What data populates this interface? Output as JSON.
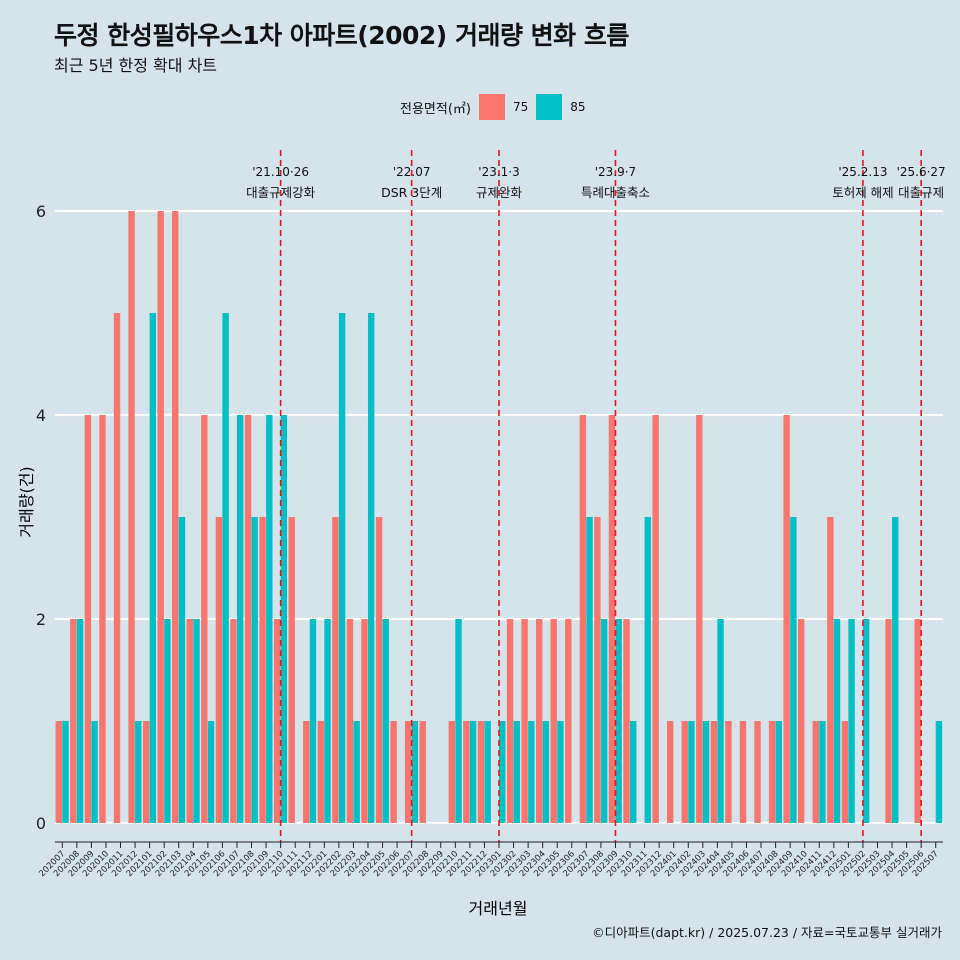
{
  "header": {
    "title": "두정 한성필하우스1차 아파트(2002) 거래량 변화 흐름",
    "subtitle": "최근 5년 한정 확대 차트"
  },
  "legend": {
    "title": "전용면적(㎡)",
    "items": [
      {
        "label": "75",
        "color": "#f8766d"
      },
      {
        "label": "85",
        "color": "#00bfc4"
      }
    ]
  },
  "caption": "©디아파트(dapt.kr) / 2025.07.23 / 자료=국토교통부 실거래가",
  "colors": {
    "background": "#d5e3ea",
    "grid": "#ffffff",
    "vline": "#e8141c"
  },
  "chart_data": {
    "type": "bar",
    "xlabel": "거래년월",
    "ylabel": "거래량(건)",
    "ylim": [
      0,
      6.5
    ],
    "yticks": [
      0,
      2,
      4,
      6
    ],
    "categories": [
      "202007",
      "202008",
      "202009",
      "202010",
      "202011",
      "202012",
      "202101",
      "202102",
      "202103",
      "202104",
      "202105",
      "202106",
      "202107",
      "202108",
      "202109",
      "202110",
      "202111",
      "202112",
      "202201",
      "202202",
      "202203",
      "202204",
      "202205",
      "202206",
      "202207",
      "202208",
      "202209",
      "202210",
      "202211",
      "202212",
      "202301",
      "202302",
      "202303",
      "202304",
      "202305",
      "202306",
      "202307",
      "202308",
      "202309",
      "202310",
      "202311",
      "202312",
      "202401",
      "202402",
      "202403",
      "202404",
      "202405",
      "202406",
      "202407",
      "202408",
      "202409",
      "202410",
      "202411",
      "202412",
      "202501",
      "202502",
      "202503",
      "202504",
      "202505",
      "202506",
      "202507"
    ],
    "series": [
      {
        "name": "75",
        "color": "#f8766d",
        "values": [
          1,
          2,
          4,
          4,
          5,
          6,
          1,
          6,
          6,
          2,
          4,
          3,
          2,
          4,
          3,
          2,
          3,
          1,
          1,
          3,
          2,
          2,
          3,
          1,
          1,
          1,
          0,
          1,
          1,
          1,
          0,
          2,
          2,
          2,
          2,
          2,
          4,
          3,
          4,
          2,
          0,
          4,
          1,
          1,
          4,
          1,
          1,
          1,
          1,
          1,
          4,
          2,
          1,
          3,
          1,
          0,
          0,
          2,
          0,
          2,
          0
        ]
      },
      {
        "name": "85",
        "color": "#00bfc4",
        "values": [
          1,
          2,
          1,
          0,
          0,
          1,
          5,
          2,
          3,
          2,
          1,
          5,
          4,
          3,
          4,
          4,
          0,
          2,
          2,
          5,
          1,
          5,
          2,
          0,
          1,
          0,
          0,
          2,
          1,
          1,
          1,
          1,
          1,
          1,
          1,
          0,
          3,
          2,
          2,
          1,
          3,
          0,
          0,
          1,
          1,
          2,
          0,
          0,
          0,
          1,
          3,
          0,
          1,
          2,
          2,
          2,
          0,
          3,
          0,
          0,
          1
        ]
      }
    ],
    "annotations": [
      {
        "x": "202110",
        "date": "'21.10·26",
        "label": "대출규제강화"
      },
      {
        "x": "202207",
        "date": "'22.07",
        "label": "DSR 3단계"
      },
      {
        "x": "202301",
        "date": "'23.1·3",
        "label": "규제완화"
      },
      {
        "x": "202309",
        "date": "'23.9·7",
        "label": "특례대출축소"
      },
      {
        "x": "202502",
        "date": "'25.2.13",
        "label": "토허제 해제"
      },
      {
        "x": "202506",
        "date": "'25.6·27",
        "label": "대출규제"
      }
    ]
  }
}
